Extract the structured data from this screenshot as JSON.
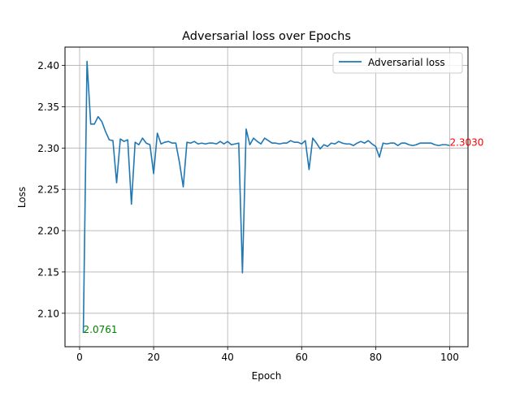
{
  "chart_data": {
    "type": "line",
    "title": "Adversarial loss over Epochs",
    "xlabel": "Epoch",
    "ylabel": "Loss",
    "xlim": [
      -3.95,
      104.95
    ],
    "ylim": [
      2.0595,
      2.4222
    ],
    "xticks": [
      0,
      20,
      40,
      60,
      80,
      100
    ],
    "yticks": [
      2.1,
      2.15,
      2.2,
      2.25,
      2.3,
      2.35,
      2.4
    ],
    "grid": true,
    "legend_position": "top-right",
    "series": [
      {
        "name": "Adversarial loss",
        "color": "#1f77b4",
        "x": [
          1,
          2,
          3,
          4,
          5,
          6,
          7,
          8,
          9,
          10,
          11,
          12,
          13,
          14,
          15,
          16,
          17,
          18,
          19,
          20,
          21,
          22,
          23,
          24,
          25,
          26,
          27,
          28,
          29,
          30,
          31,
          32,
          33,
          34,
          35,
          36,
          37,
          38,
          39,
          40,
          41,
          42,
          43,
          44,
          45,
          46,
          47,
          48,
          49,
          50,
          51,
          52,
          53,
          54,
          55,
          56,
          57,
          58,
          59,
          60,
          61,
          62,
          63,
          64,
          65,
          66,
          67,
          68,
          69,
          70,
          71,
          72,
          73,
          74,
          75,
          76,
          77,
          78,
          79,
          80,
          81,
          82,
          83,
          84,
          85,
          86,
          87,
          88,
          89,
          90,
          91,
          92,
          93,
          94,
          95,
          96,
          97,
          98,
          99,
          100
        ],
        "y": [
          2.0761,
          2.405,
          2.329,
          2.329,
          2.338,
          2.332,
          2.32,
          2.31,
          2.309,
          2.258,
          2.311,
          2.308,
          2.31,
          2.232,
          2.307,
          2.304,
          2.312,
          2.306,
          2.304,
          2.269,
          2.318,
          2.305,
          2.307,
          2.308,
          2.306,
          2.306,
          2.282,
          2.253,
          2.307,
          2.306,
          2.308,
          2.305,
          2.306,
          2.305,
          2.306,
          2.306,
          2.305,
          2.308,
          2.305,
          2.308,
          2.304,
          2.305,
          2.306,
          2.149,
          2.323,
          2.304,
          2.312,
          2.308,
          2.305,
          2.312,
          2.309,
          2.306,
          2.306,
          2.305,
          2.306,
          2.306,
          2.309,
          2.307,
          2.307,
          2.305,
          2.309,
          2.274,
          2.312,
          2.306,
          2.299,
          2.304,
          2.302,
          2.306,
          2.305,
          2.308,
          2.306,
          2.305,
          2.305,
          2.303,
          2.306,
          2.308,
          2.306,
          2.309,
          2.305,
          2.302,
          2.289,
          2.306,
          2.305,
          2.306,
          2.306,
          2.303,
          2.306,
          2.306,
          2.304,
          2.303,
          2.304,
          2.306,
          2.306,
          2.306,
          2.306,
          2.304,
          2.303,
          2.304,
          2.304,
          2.303
        ]
      }
    ],
    "annotations": [
      {
        "text": "2.0761",
        "x": 1,
        "y": 2.0761,
        "color": "#008000"
      },
      {
        "text": "2.3030",
        "x": 100,
        "y": 2.303,
        "color": "#ff0000"
      }
    ]
  }
}
